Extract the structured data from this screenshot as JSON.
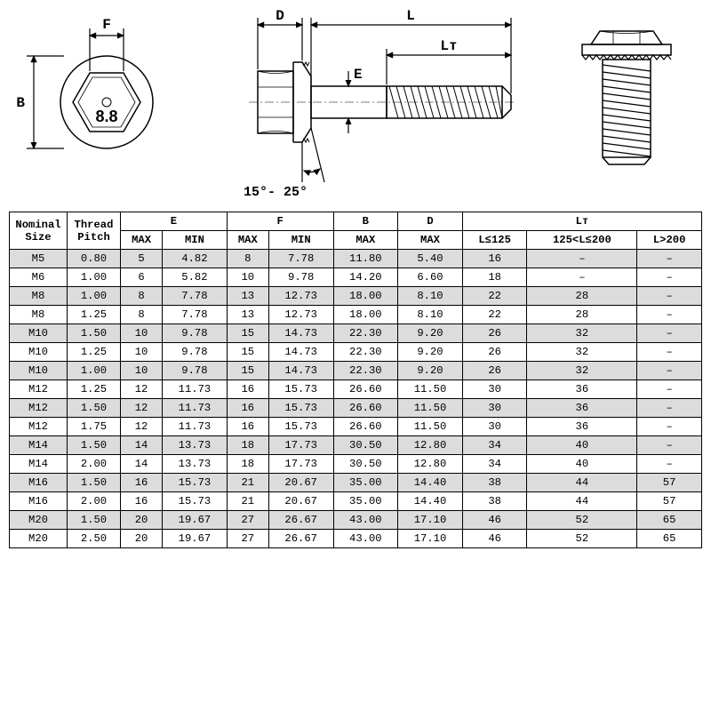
{
  "diagram": {
    "labels": {
      "F": "F",
      "B": "B",
      "mark": "8.8",
      "D": "D",
      "L": "L",
      "Lt": "Lᴛ",
      "E": "E",
      "angle": "15°- 25°"
    },
    "stroke": "#000000",
    "fill_light": "#e8e8e8",
    "text_fontsize": 16,
    "mark_fontsize": 18
  },
  "table": {
    "group_headers": [
      "Nominal Size",
      "Thread Pitch",
      "E",
      "F",
      "B",
      "D",
      "Lᴛ"
    ],
    "sub_headers": [
      "MAX",
      "MIN",
      "MAX",
      "MIN",
      "MAX",
      "MAX",
      "L≤125",
      "125<L≤200",
      "L>200"
    ],
    "rows": [
      [
        "M5",
        "0.80",
        "5",
        "4.82",
        "8",
        "7.78",
        "11.80",
        "5.40",
        "16",
        "–",
        "–"
      ],
      [
        "M6",
        "1.00",
        "6",
        "5.82",
        "10",
        "9.78",
        "14.20",
        "6.60",
        "18",
        "–",
        "–"
      ],
      [
        "M8",
        "1.00",
        "8",
        "7.78",
        "13",
        "12.73",
        "18.00",
        "8.10",
        "22",
        "28",
        "–"
      ],
      [
        "M8",
        "1.25",
        "8",
        "7.78",
        "13",
        "12.73",
        "18.00",
        "8.10",
        "22",
        "28",
        "–"
      ],
      [
        "M10",
        "1.50",
        "10",
        "9.78",
        "15",
        "14.73",
        "22.30",
        "9.20",
        "26",
        "32",
        "–"
      ],
      [
        "M10",
        "1.25",
        "10",
        "9.78",
        "15",
        "14.73",
        "22.30",
        "9.20",
        "26",
        "32",
        "–"
      ],
      [
        "M10",
        "1.00",
        "10",
        "9.78",
        "15",
        "14.73",
        "22.30",
        "9.20",
        "26",
        "32",
        "–"
      ],
      [
        "M12",
        "1.25",
        "12",
        "11.73",
        "16",
        "15.73",
        "26.60",
        "11.50",
        "30",
        "36",
        "–"
      ],
      [
        "M12",
        "1.50",
        "12",
        "11.73",
        "16",
        "15.73",
        "26.60",
        "11.50",
        "30",
        "36",
        "–"
      ],
      [
        "M12",
        "1.75",
        "12",
        "11.73",
        "16",
        "15.73",
        "26.60",
        "11.50",
        "30",
        "36",
        "–"
      ],
      [
        "M14",
        "1.50",
        "14",
        "13.73",
        "18",
        "17.73",
        "30.50",
        "12.80",
        "34",
        "40",
        "–"
      ],
      [
        "M14",
        "2.00",
        "14",
        "13.73",
        "18",
        "17.73",
        "30.50",
        "12.80",
        "34",
        "40",
        "–"
      ],
      [
        "M16",
        "1.50",
        "16",
        "15.73",
        "21",
        "20.67",
        "35.00",
        "14.40",
        "38",
        "44",
        "57"
      ],
      [
        "M16",
        "2.00",
        "16",
        "15.73",
        "21",
        "20.67",
        "35.00",
        "14.40",
        "38",
        "44",
        "57"
      ],
      [
        "M20",
        "1.50",
        "20",
        "19.67",
        "27",
        "26.67",
        "43.00",
        "17.10",
        "46",
        "52",
        "65"
      ],
      [
        "M20",
        "2.50",
        "20",
        "19.67",
        "27",
        "26.67",
        "43.00",
        "17.10",
        "46",
        "52",
        "65"
      ]
    ],
    "header_bg": "#ffffff",
    "row_odd_bg": "#dcdcdc",
    "row_even_bg": "#ffffff",
    "border_color": "#000000",
    "font_size": 12.2
  }
}
